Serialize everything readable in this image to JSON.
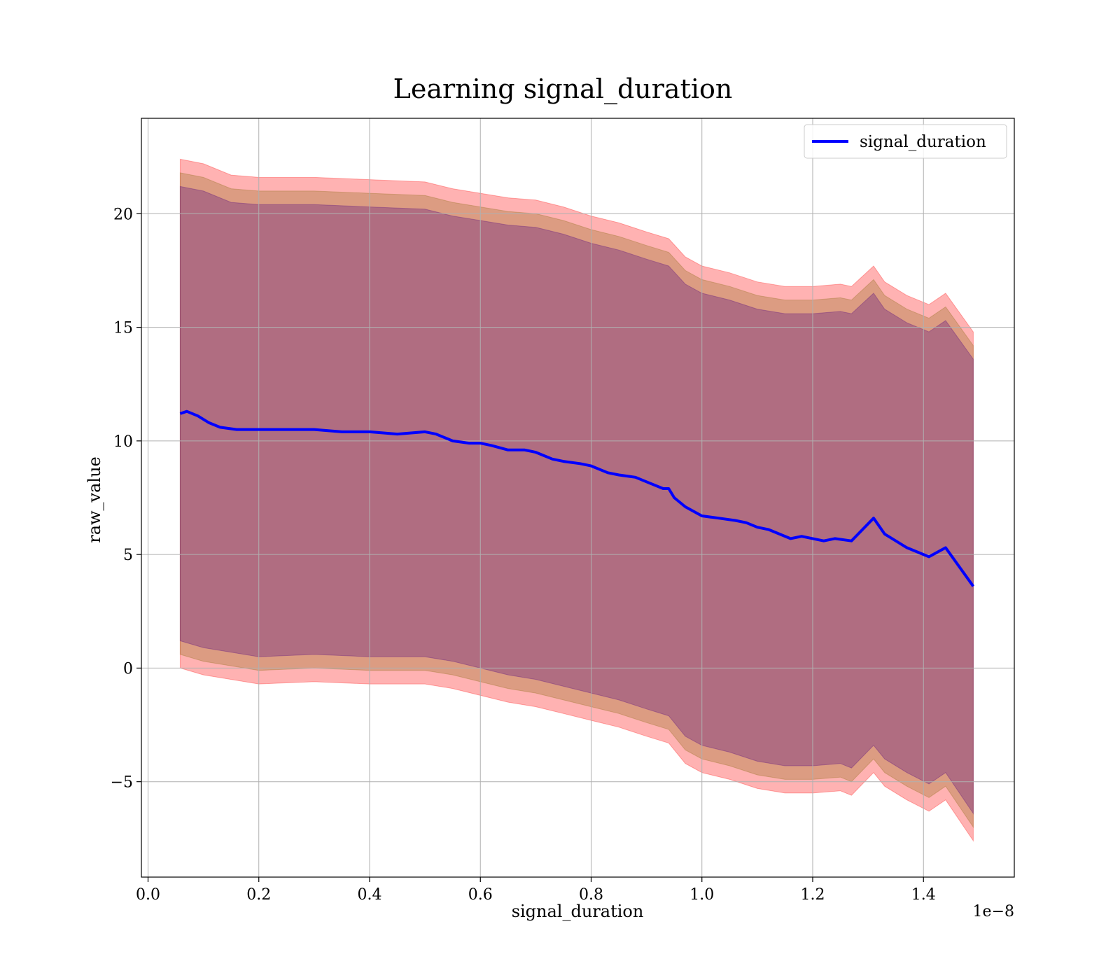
{
  "chart_data": {
    "type": "line",
    "title": "Learning signal_duration",
    "xlabel": "signal_duration",
    "ylabel": "raw_value",
    "x_offset_label": "1e−8",
    "xlim": [
      -0.012,
      1.564
    ],
    "ylim": [
      -9.2,
      24.2
    ],
    "xticks": [
      0.0,
      0.2,
      0.4,
      0.6,
      0.8,
      1.0,
      1.2,
      1.4
    ],
    "xtick_labels": [
      "0.0",
      "0.2",
      "0.4",
      "0.6",
      "0.8",
      "1.0",
      "1.2",
      "1.4"
    ],
    "yticks": [
      -5,
      0,
      5,
      10,
      15,
      20
    ],
    "ytick_labels": [
      "−5",
      "0",
      "5",
      "10",
      "15",
      "20"
    ],
    "grid": true,
    "legend_position": "top-right",
    "series": [
      {
        "name": "signal_duration",
        "color": "#0000ff",
        "x": [
          0.058,
          0.07,
          0.09,
          0.11,
          0.13,
          0.16,
          0.2,
          0.25,
          0.3,
          0.35,
          0.4,
          0.45,
          0.5,
          0.52,
          0.55,
          0.58,
          0.6,
          0.62,
          0.65,
          0.68,
          0.7,
          0.73,
          0.75,
          0.78,
          0.8,
          0.83,
          0.85,
          0.88,
          0.9,
          0.93,
          0.94,
          0.95,
          0.97,
          1.0,
          1.03,
          1.06,
          1.08,
          1.1,
          1.12,
          1.14,
          1.16,
          1.18,
          1.2,
          1.22,
          1.24,
          1.27,
          1.31,
          1.33,
          1.37,
          1.41,
          1.44,
          1.49
        ],
        "y": [
          11.2,
          11.3,
          11.1,
          10.8,
          10.6,
          10.5,
          10.5,
          10.5,
          10.5,
          10.4,
          10.4,
          10.3,
          10.4,
          10.3,
          10.0,
          9.9,
          9.9,
          9.8,
          9.6,
          9.6,
          9.5,
          9.2,
          9.1,
          9.0,
          8.9,
          8.6,
          8.5,
          8.4,
          8.2,
          7.9,
          7.9,
          7.5,
          7.1,
          6.7,
          6.6,
          6.5,
          6.4,
          6.2,
          6.1,
          5.9,
          5.7,
          5.8,
          5.7,
          5.6,
          5.7,
          5.6,
          6.6,
          5.9,
          5.3,
          4.9,
          5.3,
          3.6
        ]
      }
    ],
    "bands": [
      {
        "color": "#ff0000",
        "opacity": 0.3,
        "x": [
          0.058,
          0.1,
          0.15,
          0.2,
          0.3,
          0.4,
          0.5,
          0.55,
          0.6,
          0.65,
          0.7,
          0.75,
          0.8,
          0.85,
          0.9,
          0.94,
          0.97,
          1.0,
          1.05,
          1.1,
          1.15,
          1.2,
          1.25,
          1.27,
          1.31,
          1.33,
          1.37,
          1.41,
          1.44,
          1.49
        ],
        "upper": [
          22.4,
          22.2,
          21.7,
          21.6,
          21.6,
          21.5,
          21.4,
          21.1,
          20.9,
          20.7,
          20.6,
          20.3,
          19.9,
          19.6,
          19.2,
          18.9,
          18.1,
          17.7,
          17.4,
          17.0,
          16.8,
          16.8,
          16.9,
          16.8,
          17.7,
          17.0,
          16.4,
          16.0,
          16.5,
          14.8
        ],
        "lower": [
          0.0,
          -0.3,
          -0.5,
          -0.7,
          -0.6,
          -0.7,
          -0.7,
          -0.9,
          -1.2,
          -1.5,
          -1.7,
          -2.0,
          -2.3,
          -2.6,
          -3.0,
          -3.3,
          -4.2,
          -4.6,
          -4.9,
          -5.3,
          -5.5,
          -5.5,
          -5.4,
          -5.6,
          -4.6,
          -5.2,
          -5.8,
          -6.3,
          -5.8,
          -7.6
        ]
      },
      {
        "color": "#8b6914",
        "opacity": 0.3,
        "x": [
          0.058,
          0.1,
          0.15,
          0.2,
          0.3,
          0.4,
          0.5,
          0.55,
          0.6,
          0.65,
          0.7,
          0.75,
          0.8,
          0.85,
          0.9,
          0.94,
          0.97,
          1.0,
          1.05,
          1.1,
          1.15,
          1.2,
          1.25,
          1.27,
          1.31,
          1.33,
          1.37,
          1.41,
          1.44,
          1.49
        ],
        "upper": [
          21.8,
          21.6,
          21.1,
          21.0,
          21.0,
          20.9,
          20.8,
          20.5,
          20.3,
          20.1,
          20.0,
          19.7,
          19.3,
          19.0,
          18.6,
          18.3,
          17.5,
          17.1,
          16.8,
          16.4,
          16.2,
          16.2,
          16.3,
          16.2,
          17.1,
          16.4,
          15.8,
          15.4,
          15.9,
          14.2
        ],
        "lower": [
          0.6,
          0.3,
          0.1,
          -0.1,
          0.0,
          -0.1,
          -0.1,
          -0.3,
          -0.6,
          -0.9,
          -1.1,
          -1.4,
          -1.7,
          -2.0,
          -2.4,
          -2.7,
          -3.6,
          -4.0,
          -4.3,
          -4.7,
          -4.9,
          -4.9,
          -4.8,
          -5.0,
          -4.0,
          -4.6,
          -5.2,
          -5.7,
          -5.2,
          -7.0
        ]
      },
      {
        "color": "#4b0082",
        "opacity": 0.3,
        "x": [
          0.058,
          0.1,
          0.15,
          0.2,
          0.3,
          0.4,
          0.5,
          0.55,
          0.6,
          0.65,
          0.7,
          0.75,
          0.8,
          0.85,
          0.9,
          0.94,
          0.97,
          1.0,
          1.05,
          1.1,
          1.15,
          1.2,
          1.25,
          1.27,
          1.31,
          1.33,
          1.37,
          1.41,
          1.44,
          1.49
        ],
        "upper": [
          21.2,
          21.0,
          20.5,
          20.4,
          20.4,
          20.3,
          20.2,
          19.9,
          19.7,
          19.5,
          19.4,
          19.1,
          18.7,
          18.4,
          18.0,
          17.7,
          16.9,
          16.5,
          16.2,
          15.8,
          15.6,
          15.6,
          15.7,
          15.6,
          16.5,
          15.8,
          15.2,
          14.8,
          15.3,
          13.6
        ],
        "lower": [
          1.2,
          0.9,
          0.7,
          0.5,
          0.6,
          0.5,
          0.5,
          0.3,
          0.0,
          -0.3,
          -0.5,
          -0.8,
          -1.1,
          -1.4,
          -1.8,
          -2.1,
          -3.0,
          -3.4,
          -3.7,
          -4.1,
          -4.3,
          -4.3,
          -4.2,
          -4.4,
          -3.4,
          -4.0,
          -4.6,
          -5.1,
          -4.6,
          -6.4
        ]
      }
    ]
  }
}
